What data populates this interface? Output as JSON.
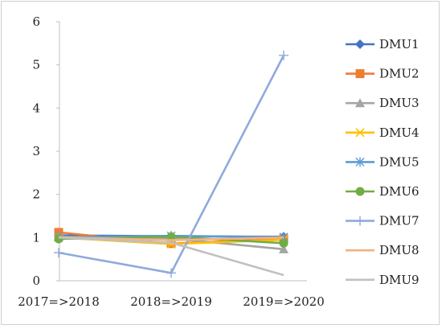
{
  "chart_data": {
    "type": "line",
    "title": "",
    "xlabel": "",
    "ylabel": "",
    "categories": [
      "2017=>2018",
      "2018=>2019",
      "2019=>2020"
    ],
    "ylim": [
      0,
      6
    ],
    "yticks": [
      0,
      1,
      2,
      3,
      4,
      5,
      6
    ],
    "grid": false,
    "legend_position": "right",
    "series": [
      {
        "name": "DMU1",
        "values": [
          1.05,
          1.03,
          1.02
        ],
        "color": "#4472c4",
        "marker": "diamond"
      },
      {
        "name": "DMU2",
        "values": [
          1.12,
          0.86,
          0.97
        ],
        "color": "#ed7d31",
        "marker": "square"
      },
      {
        "name": "DMU3",
        "values": [
          1.02,
          0.98,
          0.73
        ],
        "color": "#a5a5a5",
        "marker": "triangle"
      },
      {
        "name": "DMU4",
        "values": [
          1.0,
          0.85,
          0.95
        ],
        "color": "#ffc000",
        "marker": "x"
      },
      {
        "name": "DMU5",
        "values": [
          1.01,
          1.04,
          1.01
        ],
        "color": "#5b9bd5",
        "marker": "asterisk"
      },
      {
        "name": "DMU6",
        "values": [
          0.97,
          1.02,
          0.87
        ],
        "color": "#70ad47",
        "marker": "circle"
      },
      {
        "name": "DMU7",
        "values": [
          0.65,
          0.18,
          5.22
        ],
        "color": "#8faadc",
        "marker": "plus"
      },
      {
        "name": "DMU8",
        "values": [
          1.01,
          0.94,
          1.0
        ],
        "color": "#f4b183",
        "marker": "none"
      },
      {
        "name": "DMU9",
        "values": [
          1.0,
          0.88,
          0.13
        ],
        "color": "#c0c0c0",
        "marker": "none"
      }
    ]
  }
}
